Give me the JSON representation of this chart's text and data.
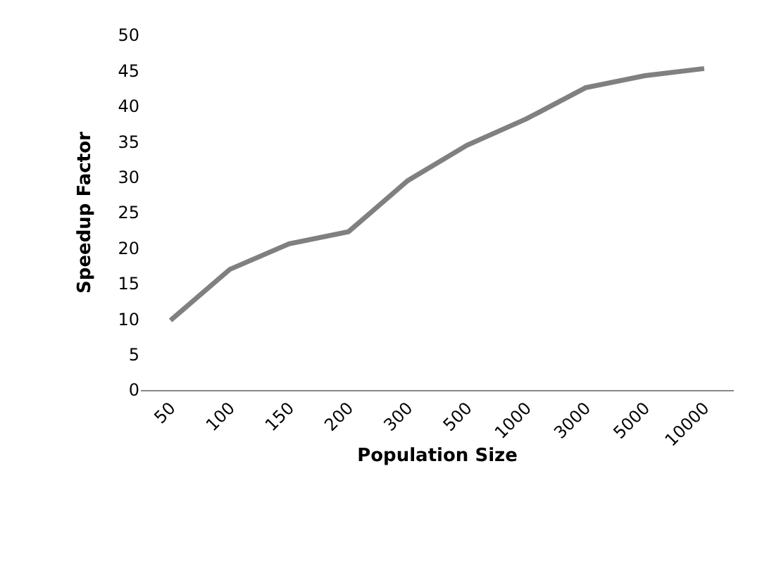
{
  "chart_data": {
    "type": "line",
    "xlabel": "Population Size",
    "ylabel": "Speedup Factor",
    "categories": [
      "50",
      "100",
      "150",
      "200",
      "300",
      "500",
      "1000",
      "3000",
      "5000",
      "10000"
    ],
    "series": [
      {
        "color": "#808080",
        "values": [
          9.8,
          17,
          20.6,
          22.3,
          29.5,
          34.5,
          38.2,
          42.6,
          44.3,
          45.3
        ]
      }
    ],
    "ylim": [
      0,
      50
    ],
    "yticks": [
      0,
      5,
      10,
      15,
      20,
      25,
      30,
      35,
      40,
      45,
      50
    ],
    "grid": false,
    "legend": false,
    "marker": "none",
    "line_style": "solid"
  }
}
